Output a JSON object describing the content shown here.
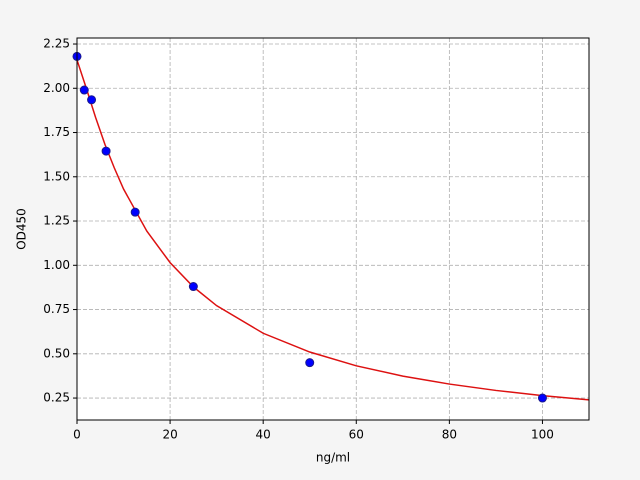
{
  "chart_data": {
    "type": "scatter",
    "xlabel": "ng/ml",
    "ylabel": "OD450",
    "xlim": [
      0,
      110
    ],
    "ylim": [
      0.126,
      2.284
    ],
    "xticks": [
      0,
      20,
      40,
      60,
      80,
      100
    ],
    "yticks": [
      0.25,
      {
        "value": 0.5,
        "label": "0.50"
      },
      0.75,
      {
        "value": 1.0,
        "label": "1.00"
      },
      1.25,
      {
        "value": 1.5,
        "label": "1.50"
      },
      1.75,
      {
        "value": 2.0,
        "label": "2.00"
      },
      2.25
    ],
    "grid": true,
    "series": [
      {
        "type": "line",
        "color": "#dd1111",
        "x": [
          0,
          2,
          4,
          6,
          8,
          10,
          15,
          20,
          25,
          30,
          40,
          50,
          60,
          70,
          80,
          90,
          100,
          110
        ],
        "values": [
          2.16,
          2.0,
          1.835,
          1.683,
          1.551,
          1.431,
          1.193,
          1.015,
          0.878,
          0.772,
          0.616,
          0.51,
          0.432,
          0.374,
          0.329,
          0.293,
          0.264,
          0.24
        ]
      },
      {
        "type": "scatter",
        "color": "#0000ff",
        "x": [
          0,
          1.5625,
          3.125,
          6.25,
          12.5,
          25,
          50,
          100
        ],
        "values": [
          2.18,
          1.99,
          1.935,
          1.645,
          1.3,
          0.88,
          0.45,
          0.25
        ]
      }
    ]
  }
}
